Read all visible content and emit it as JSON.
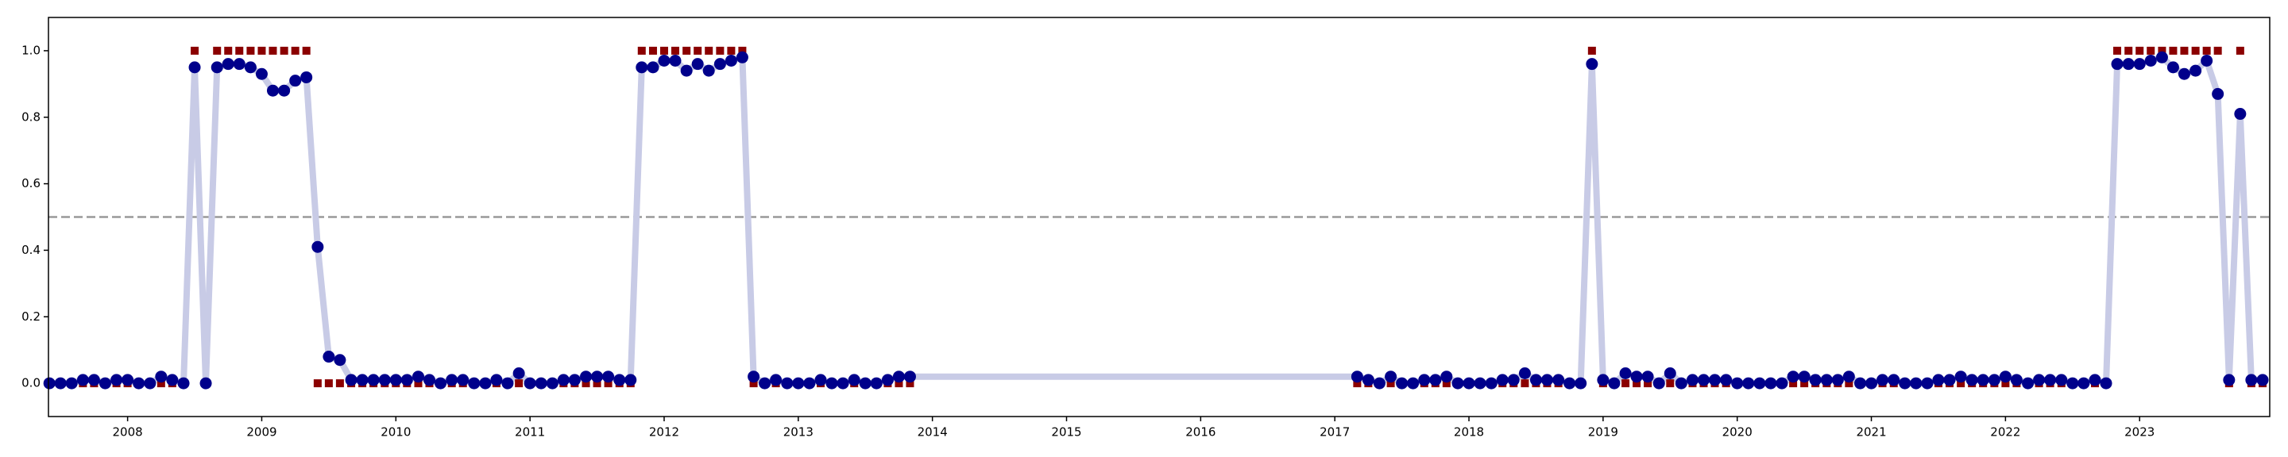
{
  "chart_data": {
    "type": "line",
    "xlim": [
      2007.41,
      2023.97
    ],
    "ylim": [
      -0.1,
      1.1
    ],
    "xticks": [
      2008,
      2009,
      2010,
      2011,
      2012,
      2013,
      2014,
      2015,
      2016,
      2017,
      2018,
      2019,
      2020,
      2021,
      2022,
      2023
    ],
    "yticks": [
      {
        "value": 0,
        "label": "0.0"
      },
      {
        "value": 0.2,
        "label": "0.2"
      },
      {
        "value": 0.4,
        "label": "0.4"
      },
      {
        "value": 0.6,
        "label": "0.6"
      },
      {
        "value": 0.8,
        "label": "0.8"
      },
      {
        "value": 1,
        "label": "1.0"
      }
    ],
    "hlines": [
      {
        "value": 0.5,
        "color": "#999999",
        "style": "dashed"
      }
    ],
    "x": [
      2007.417,
      2007.5,
      2007.583,
      2007.667,
      2007.75,
      2007.833,
      2007.917,
      2008,
      2008.083,
      2008.167,
      2008.25,
      2008.333,
      2008.417,
      2008.5,
      2008.583,
      2008.667,
      2008.75,
      2008.833,
      2008.917,
      2009,
      2009.083,
      2009.167,
      2009.25,
      2009.333,
      2009.417,
      2009.5,
      2009.583,
      2009.667,
      2009.75,
      2009.833,
      2009.917,
      2010,
      2010.083,
      2010.167,
      2010.25,
      2010.333,
      2010.417,
      2010.5,
      2010.583,
      2010.667,
      2010.75,
      2010.833,
      2010.917,
      2011,
      2011.083,
      2011.167,
      2011.25,
      2011.333,
      2011.417,
      2011.5,
      2011.583,
      2011.667,
      2011.75,
      2011.833,
      2011.917,
      2012,
      2012.083,
      2012.167,
      2012.25,
      2012.333,
      2012.417,
      2012.5,
      2012.583,
      2012.667,
      2012.75,
      2012.833,
      2012.917,
      2013,
      2013.083,
      2013.167,
      2013.25,
      2013.333,
      2013.417,
      2013.5,
      2013.583,
      2013.667,
      2013.75,
      2013.833,
      2017.167,
      2017.25,
      2017.333,
      2017.417,
      2017.5,
      2017.583,
      2017.667,
      2017.75,
      2017.833,
      2017.917,
      2018,
      2018.083,
      2018.167,
      2018.25,
      2018.333,
      2018.417,
      2018.5,
      2018.583,
      2018.667,
      2018.75,
      2018.833,
      2018.917,
      2019,
      2019.083,
      2019.167,
      2019.25,
      2019.333,
      2019.417,
      2019.5,
      2019.583,
      2019.667,
      2019.75,
      2019.833,
      2019.917,
      2020,
      2020.083,
      2020.167,
      2020.25,
      2020.333,
      2020.417,
      2020.5,
      2020.583,
      2020.667,
      2020.75,
      2020.833,
      2020.917,
      2021,
      2021.083,
      2021.167,
      2021.25,
      2021.333,
      2021.417,
      2021.5,
      2021.583,
      2021.667,
      2021.75,
      2021.833,
      2021.917,
      2022,
      2022.083,
      2022.167,
      2022.25,
      2022.333,
      2022.417,
      2022.5,
      2022.583,
      2022.667,
      2022.75,
      2022.833,
      2022.917,
      2023,
      2023.083,
      2023.167,
      2023.25,
      2023.333,
      2023.417,
      2023.5,
      2023.583,
      2023.667,
      2023.75,
      2023.833,
      2023.917
    ],
    "series": [
      {
        "color": "#00008b",
        "line_color": "#c8cbe6",
        "marker": "circle",
        "values": [
          0,
          0,
          0,
          0.01,
          0.01,
          0,
          0.01,
          0.01,
          0,
          0,
          0.02,
          0.01,
          0,
          0.95,
          0,
          0.95,
          0.96,
          0.96,
          0.95,
          0.93,
          0.88,
          0.88,
          0.91,
          0.92,
          0.41,
          0.08,
          0.07,
          0.01,
          0.01,
          0.01,
          0.01,
          0.01,
          0.01,
          0.02,
          0.01,
          0,
          0.01,
          0.01,
          0,
          0,
          0.01,
          0,
          0.03,
          0,
          0,
          0,
          0.01,
          0.01,
          0.02,
          0.02,
          0.02,
          0.01,
          0.01,
          0.95,
          0.95,
          0.97,
          0.97,
          0.94,
          0.96,
          0.94,
          0.96,
          0.97,
          0.98,
          0.02,
          0,
          0.01,
          0,
          0,
          0,
          0.01,
          0,
          0,
          0.01,
          0,
          0,
          0.01,
          0.02,
          0.02,
          0.02,
          0.01,
          0,
          0.02,
          0,
          0,
          0.01,
          0.01,
          0.02,
          0,
          0,
          0,
          0,
          0.01,
          0.01,
          0.03,
          0.01,
          0.01,
          0.01,
          0,
          0,
          0.96,
          0.01,
          0,
          0.03,
          0.02,
          0.02,
          0,
          0.03,
          0,
          0.01,
          0.01,
          0.01,
          0.01,
          0,
          0,
          0,
          0,
          0,
          0.02,
          0.02,
          0.01,
          0.01,
          0.01,
          0.02,
          0,
          0,
          0.01,
          0.01,
          0,
          0,
          0,
          0.01,
          0.01,
          0.02,
          0.01,
          0.01,
          0.01,
          0.02,
          0.01,
          0,
          0.01,
          0.01,
          0.01,
          0,
          0,
          0.01,
          0,
          0.96,
          0.96,
          0.96,
          0.97,
          0.98,
          0.95,
          0.93,
          0.94,
          0.97,
          0.87,
          0.01,
          0.81,
          0.01,
          0.01
        ]
      },
      {
        "color": "#8b0000",
        "marker": "square",
        "values": [
          0,
          0,
          0,
          0,
          0,
          0,
          0,
          0,
          0,
          0,
          0,
          0,
          0,
          1,
          0,
          1,
          1,
          1,
          1,
          1,
          1,
          1,
          1,
          1,
          0,
          0,
          0,
          0,
          0,
          0,
          0,
          0,
          0,
          0,
          0,
          0,
          0,
          0,
          0,
          0,
          0,
          0,
          0,
          0,
          0,
          0,
          0,
          0,
          0,
          0,
          0,
          0,
          0,
          1,
          1,
          1,
          1,
          1,
          1,
          1,
          1,
          1,
          1,
          0,
          0,
          0,
          0,
          0,
          0,
          0,
          0,
          0,
          0,
          0,
          0,
          0,
          0,
          0,
          0,
          0,
          0,
          0,
          0,
          0,
          0,
          0,
          0,
          0,
          0,
          0,
          0,
          0,
          0,
          0,
          0,
          0,
          0,
          0,
          0,
          1,
          0,
          0,
          0,
          0,
          0,
          0,
          0,
          0,
          0,
          0,
          0,
          0,
          0,
          0,
          0,
          0,
          0,
          0,
          0,
          0,
          0,
          0,
          0,
          0,
          0,
          0,
          0,
          0,
          0,
          0,
          0,
          0,
          0,
          0,
          0,
          0,
          0,
          0,
          0,
          0,
          0,
          0,
          0,
          0,
          0,
          0,
          1,
          1,
          1,
          1,
          1,
          1,
          1,
          1,
          1,
          1,
          0,
          1,
          0,
          0
        ]
      }
    ]
  }
}
